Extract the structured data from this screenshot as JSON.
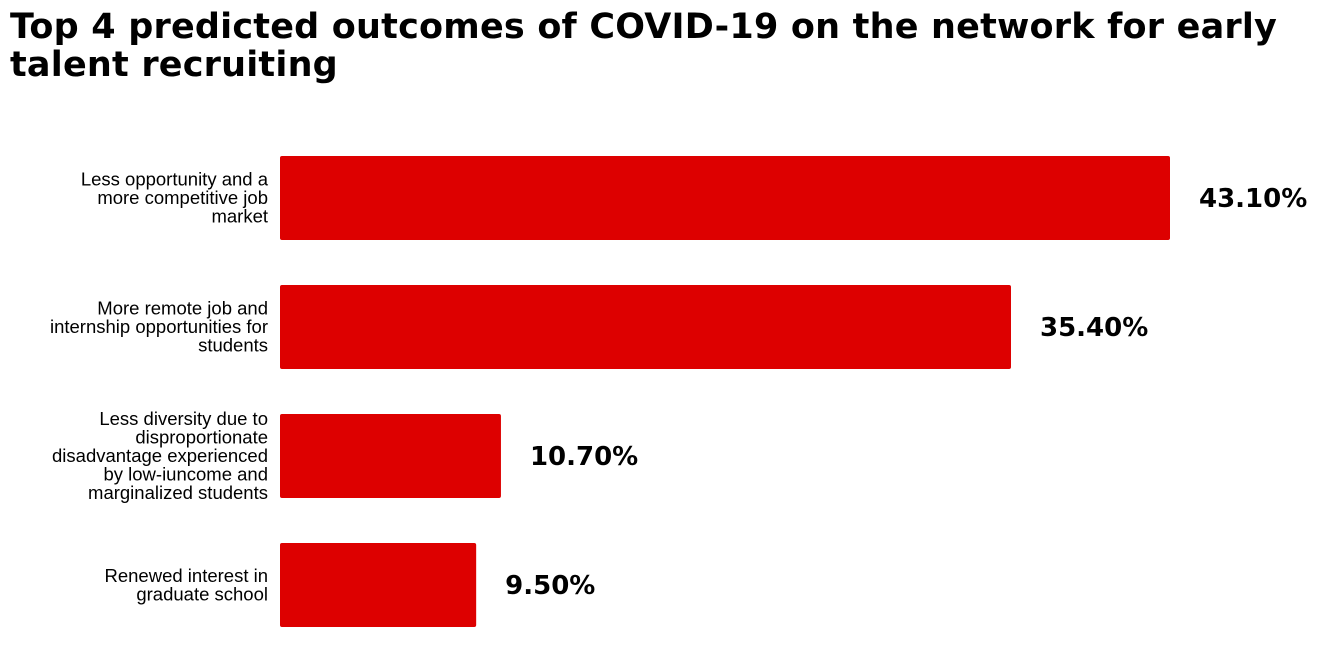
{
  "colors": {
    "bar": "#dd0000",
    "text": "#000000",
    "background": "#ffffff"
  },
  "chart_data": {
    "type": "bar",
    "orientation": "horizontal",
    "title": "Top 4 predicted outcomes of COVID-19 on the network for early talent recruiting",
    "categories": [
      "Less opportunity and a more competitive job market",
      "More remote job and internship opportunities for students",
      "Less diversity due to disproportionate disadvantage experienced by low-iuncome and marginalized students",
      "Renewed interest in graduate school"
    ],
    "category_lines": [
      [
        "Less opportunity and a",
        "more competitive job",
        "market"
      ],
      [
        "More remote job and",
        "internship opportunities for",
        "students"
      ],
      [
        "Less diversity due to",
        "disproportionate",
        "disadvantage experienced",
        "by low-iuncome and",
        "marginalized students"
      ],
      [
        "Renewed interest in",
        "graduate school"
      ]
    ],
    "values": [
      43.1,
      35.4,
      10.7,
      9.5
    ],
    "value_labels": [
      "43.10%",
      "35.40%",
      "10.70%",
      "9.50%"
    ],
    "xlim": [
      0,
      43.1
    ],
    "xlabel": "",
    "ylabel": "",
    "grid": false,
    "legend": "none"
  }
}
